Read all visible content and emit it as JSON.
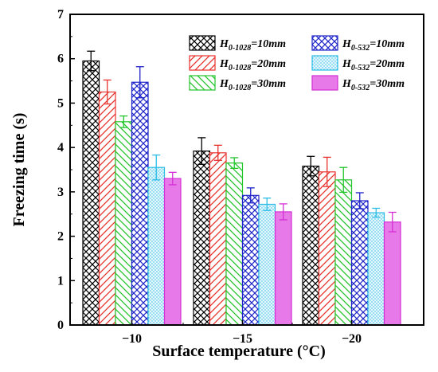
{
  "chart_data": {
    "type": "bar",
    "xlabel": "Surface temperature (°C)",
    "ylabel": "Freezing time (s)",
    "categories": [
      "−10",
      "−15",
      "−20"
    ],
    "ylim": [
      0,
      7
    ],
    "yticks": [
      "0",
      "1",
      "2",
      "3",
      "4",
      "5",
      "6",
      "7"
    ],
    "series": [
      {
        "name": "H0-1028=10mm",
        "legend_main": "H",
        "legend_sub": "0-1028",
        "legend_rest": "=10mm",
        "color": "#000000",
        "fill": "#ffffff",
        "pattern": "crosshatch",
        "values": [
          5.95,
          3.92,
          3.58
        ],
        "errors": [
          0.22,
          0.3,
          0.22
        ]
      },
      {
        "name": "H0-1028=20mm",
        "legend_main": "H",
        "legend_sub": "0-1028",
        "legend_rest": "=20mm",
        "color": "#e8312c",
        "fill": "#ffffff",
        "pattern": "diag-up",
        "values": [
          5.25,
          3.88,
          3.45
        ],
        "errors": [
          0.27,
          0.17,
          0.33
        ]
      },
      {
        "name": "H0-1028=30mm",
        "legend_main": "H",
        "legend_sub": "0-1028",
        "legend_rest": "=30mm",
        "color": "#22c42a",
        "fill": "#ffffff",
        "pattern": "diag-down",
        "values": [
          4.58,
          3.65,
          3.27
        ],
        "errors": [
          0.13,
          0.12,
          0.28
        ]
      },
      {
        "name": "H0-532=10mm",
        "legend_main": "H",
        "legend_sub": "0-532",
        "legend_rest": "=10mm",
        "color": "#1d23c8",
        "fill": "#ffffff",
        "pattern": "crosshatch",
        "values": [
          5.47,
          2.92,
          2.8
        ],
        "errors": [
          0.35,
          0.17,
          0.18
        ]
      },
      {
        "name": "H0-532=20mm",
        "legend_main": "H",
        "legend_sub": "0-532",
        "legend_rest": "=20mm",
        "color": "#2bbde6",
        "fill": "#dff4fb",
        "pattern": "dots",
        "values": [
          3.55,
          2.72,
          2.53
        ],
        "errors": [
          0.28,
          0.14,
          0.1
        ]
      },
      {
        "name": "H0-532=30mm",
        "legend_main": "H",
        "legend_sub": "0-532",
        "legend_rest": "=30mm",
        "color": "#d52fd5",
        "fill": "#e879e8",
        "pattern": "solid",
        "values": [
          3.3,
          2.55,
          2.32
        ],
        "errors": [
          0.14,
          0.18,
          0.22
        ]
      }
    ]
  }
}
